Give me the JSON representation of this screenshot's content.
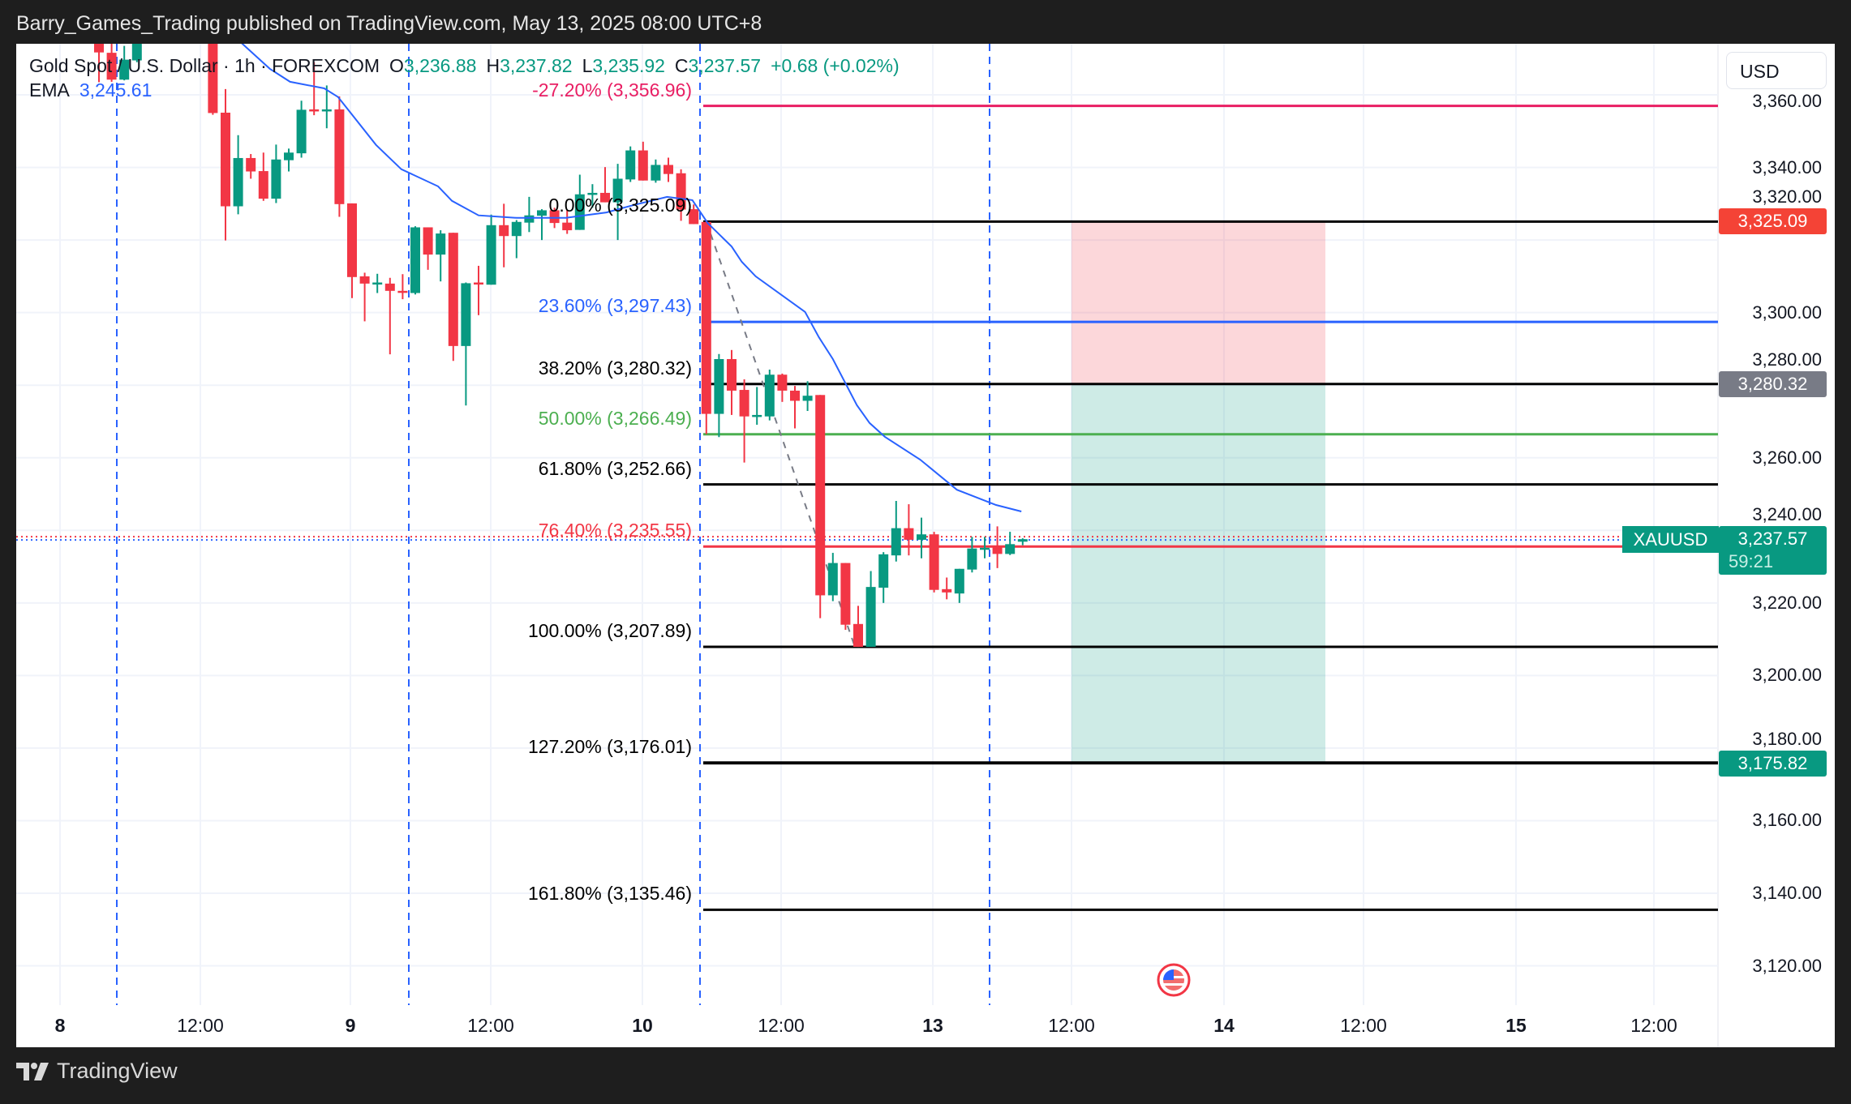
{
  "header": {
    "publish_text": "Barry_Games_Trading published on TradingView.com, May 13, 2025 08:00 UTC+8"
  },
  "legend": {
    "symbol": "Gold Spot / U.S. Dollar · 1h · FOREXCOM",
    "o_label": "O",
    "o_value": "3,236.88",
    "h_label": "H",
    "h_value": "3,237.82",
    "l_label": "L",
    "l_value": "3,235.92",
    "c_label": "C",
    "c_value": "3,237.57",
    "change": "+0.68 (+0.02%)",
    "ema_label": "EMA",
    "ema_value": "3,245.61"
  },
  "currency_button": "USD",
  "fib_levels": [
    {
      "label": "-27.20% (3,356.96)",
      "price": 3356.96,
      "color": "#e91e63"
    },
    {
      "label": "0.00% (3,325.09)",
      "price": 3325.09,
      "color": "#000000"
    },
    {
      "label": "23.60% (3,297.43)",
      "price": 3297.43,
      "color": "#2962ff"
    },
    {
      "label": "38.20% (3,280.32)",
      "price": 3280.32,
      "color": "#000000"
    },
    {
      "label": "50.00% (3,266.49)",
      "price": 3266.49,
      "color": "#4caf50"
    },
    {
      "label": "61.80% (3,252.66)",
      "price": 3252.66,
      "color": "#000000"
    },
    {
      "label": "76.40% (3,235.55)",
      "price": 3235.55,
      "color": "#f23645"
    },
    {
      "label": "100.00% (3,207.89)",
      "price": 3207.89,
      "color": "#000000"
    },
    {
      "label": "127.20% (3,176.01)",
      "price": 3176.01,
      "color": "#000000"
    },
    {
      "label": "161.80% (3,135.46)",
      "price": 3135.46,
      "color": "#000000"
    }
  ],
  "position": {
    "entry": 3280.32,
    "stop": 3325.09,
    "target": 3175.82,
    "stop_color": "#f23645",
    "target_color": "#089981"
  },
  "price_axis": {
    "ticks": [
      "3,360.00",
      "3,340.00",
      "3,320.00",
      "3,300.00",
      "3,280.00",
      "3,260.00",
      "3,240.00",
      "3,220.00",
      "3,200.00",
      "3,180.00",
      "3,160.00",
      "3,140.00",
      "3,120.00"
    ],
    "tick_values": [
      3360,
      3340,
      3320,
      3300,
      3280,
      3260,
      3240,
      3220,
      3200,
      3180,
      3160,
      3140,
      3120
    ]
  },
  "price_labels": [
    {
      "text": "3,325.09",
      "price": 3325.09,
      "color": "#f44336"
    },
    {
      "text": "3,280.32",
      "price": 3280.32,
      "color": "#787b86"
    },
    {
      "text": "3,175.82",
      "price": 3175.82,
      "color": "#089981"
    }
  ],
  "current": {
    "symbol": "XAUUSD",
    "price_text": "3,237.57",
    "price": 3237.57,
    "countdown": "59:21"
  },
  "time_axis": [
    {
      "label": "8",
      "day": true
    },
    {
      "label": "12:00",
      "day": false
    },
    {
      "label": "9",
      "day": true
    },
    {
      "label": "12:00",
      "day": false
    },
    {
      "label": "10",
      "day": true
    },
    {
      "label": "12:00",
      "day": false
    },
    {
      "label": "13",
      "day": true
    },
    {
      "label": "12:00",
      "day": false
    },
    {
      "label": "14",
      "day": true
    },
    {
      "label": "12:00",
      "day": false
    },
    {
      "label": "15",
      "day": true
    },
    {
      "label": "12:00",
      "day": false
    }
  ],
  "footer": {
    "brand": "TradingView"
  },
  "colors": {
    "up": "#089981",
    "down": "#f23645",
    "ema": "#2962ff",
    "session": "#2962ff"
  },
  "chart_data": {
    "type": "candlestick",
    "interval": "1h",
    "candles_ohlc": [
      [
        3378,
        3380,
        3363.5,
        3371.7
      ],
      [
        3371.6,
        3375,
        3363.6,
        3364.2
      ],
      [
        3364.2,
        3373.5,
        3364,
        3369.7
      ],
      [
        3369.5,
        3385,
        3369,
        3380
      ],
      [
        3380,
        3390,
        3376,
        3385
      ],
      [
        3385,
        3395,
        3380,
        3392
      ],
      [
        3392,
        3398,
        3384,
        3388
      ],
      [
        3388,
        3394,
        3380,
        3383
      ],
      [
        3383,
        3392,
        3378,
        3385
      ],
      [
        3385,
        3390,
        3354.5,
        3355
      ],
      [
        3355.1,
        3361.6,
        3319.9,
        3329.3
      ],
      [
        3329.3,
        3348.9,
        3327.1,
        3342.6
      ],
      [
        3342.6,
        3343.7,
        3336.9,
        3338.9
      ],
      [
        3339,
        3344.1,
        3330.8,
        3331.4
      ],
      [
        3331.4,
        3346.3,
        3330.2,
        3342.2
      ],
      [
        3342,
        3345.2,
        3338.9,
        3344.1
      ],
      [
        3343.9,
        3358.4,
        3342.7,
        3355.9
      ],
      [
        3356,
        3369,
        3354.4,
        3355.6
      ],
      [
        3355.6,
        3362.6,
        3350.8,
        3356
      ],
      [
        3356,
        3359.6,
        3326.4,
        3329.9
      ],
      [
        3330.1,
        3330.1,
        3304,
        3309.8
      ],
      [
        3310,
        3311,
        3297.6,
        3308
      ],
      [
        3308,
        3310.7,
        3305.4,
        3308.3
      ],
      [
        3308,
        3309.6,
        3288.5,
        3306
      ],
      [
        3306,
        3310.6,
        3303.7,
        3305.6
      ],
      [
        3305.4,
        3323.8,
        3305,
        3323.5
      ],
      [
        3323.5,
        3323.5,
        3311.8,
        3316
      ],
      [
        3316,
        3322.7,
        3308.6,
        3321.8
      ],
      [
        3322,
        3322,
        3286.7,
        3290.8
      ],
      [
        3290.8,
        3308.3,
        3274.4,
        3308.1
      ],
      [
        3308.3,
        3312.9,
        3299.3,
        3307.9
      ],
      [
        3307.7,
        3327,
        3307.7,
        3324.1
      ],
      [
        3324.1,
        3330,
        3312.5,
        3321.1
      ],
      [
        3321.1,
        3325.5,
        3315,
        3325
      ],
      [
        3324.8,
        3331.9,
        3322.2,
        3326.8
      ],
      [
        3326.7,
        3328.5,
        3320,
        3328.2
      ],
      [
        3328.2,
        3328.9,
        3323.3,
        3324.7
      ],
      [
        3324.8,
        3328.2,
        3321.7,
        3322.7
      ],
      [
        3322.8,
        3338,
        3322.8,
        3332.6
      ],
      [
        3332.6,
        3335.4,
        3328.9,
        3333
      ],
      [
        3333,
        3340.1,
        3330.4,
        3330.4
      ],
      [
        3330.4,
        3341,
        3320,
        3336.9
      ],
      [
        3336.7,
        3345.8,
        3336,
        3344.7
      ],
      [
        3344.7,
        3347.1,
        3336.4,
        3336.4
      ],
      [
        3336.4,
        3342.2,
        3335.8,
        3340.7
      ],
      [
        3340.7,
        3342.7,
        3336,
        3338.2
      ],
      [
        3338.4,
        3339.5,
        3325.3,
        3328.4
      ],
      [
        3328.5,
        3329.8,
        3324.4,
        3324.4
      ],
      [
        3325,
        3325.09,
        3266.5,
        3272.1
      ],
      [
        3272.1,
        3288.6,
        3265.7,
        3287.2
      ],
      [
        3287.2,
        3289.7,
        3271.8,
        3278.5
      ],
      [
        3278.7,
        3281.6,
        3258.7,
        3271.4
      ],
      [
        3271.4,
        3279.5,
        3269.1,
        3271.8
      ],
      [
        3271.4,
        3284.3,
        3270.3,
        3282.9
      ],
      [
        3282.9,
        3283.2,
        3275.4,
        3278.5
      ],
      [
        3278.5,
        3279.8,
        3268.1,
        3275.7
      ],
      [
        3275.7,
        3281.1,
        3272.9,
        3277.1
      ],
      [
        3277.3,
        3277.3,
        3215.8,
        3222.1
      ],
      [
        3222.1,
        3233.8,
        3220.5,
        3231
      ],
      [
        3231,
        3231,
        3212.6,
        3214
      ],
      [
        3214.2,
        3219.2,
        3207.89,
        3207.9
      ],
      [
        3207.9,
        3228.8,
        3207.89,
        3224.4
      ],
      [
        3224.2,
        3234,
        3220,
        3233.4
      ],
      [
        3233.1,
        3248.1,
        3231.4,
        3240.6
      ],
      [
        3240.6,
        3247.2,
        3233.1,
        3237.4
      ],
      [
        3237.4,
        3243.5,
        3232.3,
        3238.9
      ],
      [
        3238.9,
        3239.6,
        3222.9,
        3223.6
      ],
      [
        3223.8,
        3227,
        3221,
        3222.9
      ],
      [
        3222.6,
        3229.4,
        3220,
        3229.4
      ],
      [
        3229.2,
        3238.2,
        3228.4,
        3235
      ],
      [
        3235,
        3238.2,
        3232.3,
        3235.2
      ],
      [
        3235.4,
        3241.1,
        3229.6,
        3233.5
      ],
      [
        3233.5,
        3239.6,
        3233.2,
        3236.2
      ],
      [
        3236.88,
        3237.82,
        3235.92,
        3237.57
      ]
    ],
    "ema_points": [
      [
        11.2,
        3374.5
      ],
      [
        13.5,
        3367.2
      ],
      [
        15.1,
        3363.6
      ],
      [
        17.8,
        3361.8
      ],
      [
        18.9,
        3359.4
      ],
      [
        21.9,
        3346.2
      ],
      [
        23.9,
        3339.5
      ],
      [
        26.8,
        3334.8
      ],
      [
        27.9,
        3330.8
      ],
      [
        30,
        3326.8
      ],
      [
        33,
        3326.1
      ],
      [
        36.9,
        3326.1
      ],
      [
        40.1,
        3327.6
      ],
      [
        42.2,
        3329.6
      ],
      [
        44.9,
        3331.9
      ],
      [
        46.9,
        3331
      ],
      [
        48.1,
        3324.7
      ],
      [
        50,
        3318.2
      ],
      [
        50.8,
        3314
      ],
      [
        51.9,
        3310
      ],
      [
        55.8,
        3300.2
      ],
      [
        56.9,
        3293.2
      ],
      [
        58,
        3287.2
      ],
      [
        59.9,
        3274.5
      ],
      [
        60.9,
        3269.6
      ],
      [
        62.1,
        3265.8
      ],
      [
        64.9,
        3259.5
      ],
      [
        67.8,
        3251.2
      ],
      [
        70.9,
        3247
      ],
      [
        72.9,
        3245.2
      ]
    ],
    "fib_anchor": {
      "from": [
        48,
        3325.09
      ],
      "to": [
        60,
        3207.89
      ]
    },
    "ylim": [
      3110,
      3380
    ]
  }
}
